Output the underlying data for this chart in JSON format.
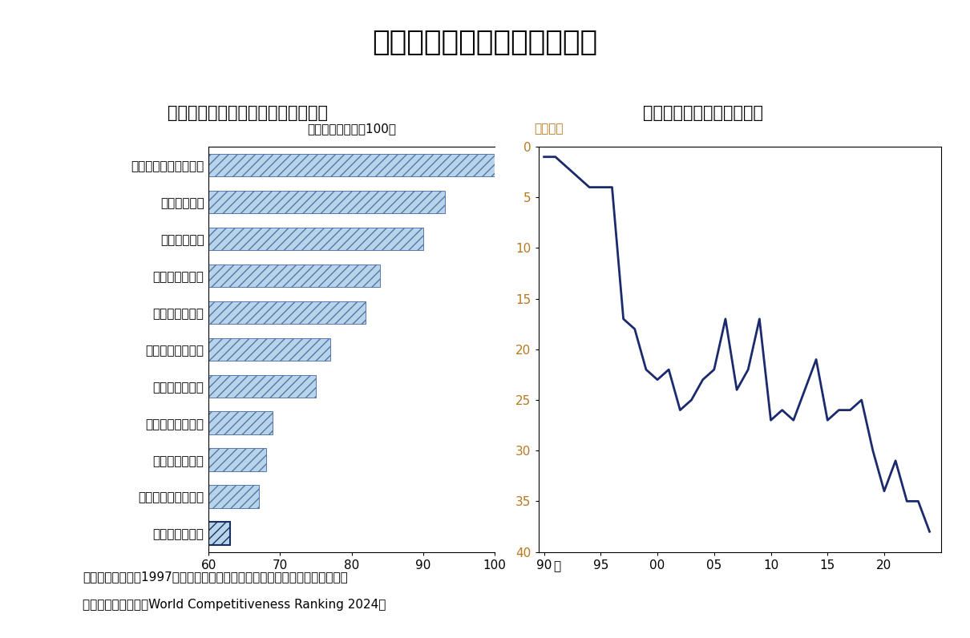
{
  "title": "ＩＭＤ世界競争力ランキング",
  "subtitle_left": "（主要国のスコア＜２０２４年＞）",
  "subtitle_right": "（日本のランキング推移）",
  "bar_label_left": "（シンガポール＝100）",
  "bar_label_right": "（順位）",
  "bar_categories": [
    "シンガポール＜１位＞",
    "香港＜５位＞",
    "台湾＜８位＞",
    "米国＜１２位＞",
    "中国＜１４位＞",
    "カナダ＜１９位＞",
    "韓国＜２０位＞",
    "ドイツ＜２４位＞",
    "英国＜２８位＞",
    "フランス＜３１位＞",
    "日本＜３８位＞"
  ],
  "bar_values": [
    100,
    93,
    90,
    84,
    82,
    77,
    75,
    69,
    68,
    67,
    63
  ],
  "bar_xlim": [
    60,
    100
  ],
  "bar_xticks": [
    60,
    70,
    80,
    90,
    100
  ],
  "line_years": [
    1990,
    1991,
    1992,
    1993,
    1994,
    1995,
    1996,
    1997,
    1998,
    1999,
    2000,
    2001,
    2002,
    2003,
    2004,
    2005,
    2006,
    2007,
    2008,
    2009,
    2010,
    2011,
    2012,
    2013,
    2014,
    2015,
    2016,
    2017,
    2018,
    2019,
    2020,
    2021,
    2022,
    2023,
    2024
  ],
  "line_values": [
    1,
    1,
    2,
    3,
    4,
    4,
    4,
    17,
    18,
    22,
    23,
    22,
    26,
    25,
    23,
    22,
    17,
    24,
    22,
    17,
    27,
    26,
    27,
    24,
    21,
    27,
    26,
    26,
    25,
    30,
    34,
    31,
    35,
    35,
    38
  ],
  "line_color": "#1a2a6c",
  "line_width": 2.0,
  "line_yticks": [
    0,
    5,
    10,
    15,
    20,
    25,
    30,
    35,
    40
  ],
  "line_xtick_labels": [
    "90",
    "95",
    "00",
    "05",
    "10",
    "15",
    "20"
  ],
  "line_xtick_positions": [
    1990,
    1995,
    2000,
    2005,
    2010,
    2015,
    2020
  ],
  "note1": "（注）右図では、1997年に調査の枠組み見直しによる不連続が生じている。",
  "note2": "（出所）　ＩＭＤ「World Competitiveness Ranking 2024」",
  "background_color": "#ffffff",
  "hatch_color": "#b8d4ea",
  "hatch_pattern": "///",
  "japan_bar_color": "#1a3060",
  "axis_label_color_right": "#b87820",
  "year_label": "年"
}
